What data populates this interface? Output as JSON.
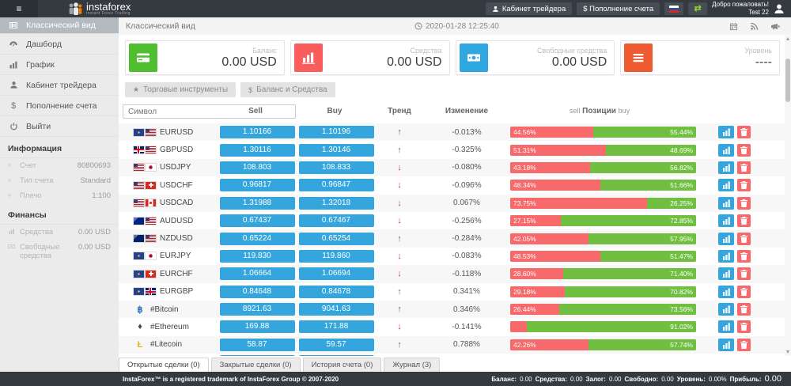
{
  "theme": {
    "header_bg": "#343a40",
    "accent_blue": "#35a6dd",
    "bar_red": "#f8696b",
    "bar_green": "#70bf41"
  },
  "header": {
    "logo_title": "instaforex",
    "logo_subtitle": "Instant Forex Trading",
    "trader_cabinet": "Кабинет трейдера",
    "deposit": "$ Пополнение счета",
    "welcome_line1": "Добро пожаловать!",
    "welcome_line2": "Test 22"
  },
  "subheader": {
    "breadcrumb": "Классический вид",
    "datetime": "2020-01-28 12:25:40"
  },
  "sidebar": {
    "items": [
      {
        "label": "Классический вид",
        "icon": "table-icon",
        "active": true
      },
      {
        "label": "Дашборд",
        "icon": "dashboard-icon",
        "active": false
      },
      {
        "label": "График",
        "icon": "chart-icon",
        "active": false
      },
      {
        "label": "Кабинет трейдера",
        "icon": "user-icon",
        "active": false
      },
      {
        "label": "Пополнение счета",
        "icon": "dollar-icon",
        "active": false
      },
      {
        "label": "Выйти",
        "icon": "power-icon",
        "active": false
      }
    ],
    "info_header": "Информация",
    "info": [
      {
        "label": "Счет",
        "value": "80800693"
      },
      {
        "label": "Тип счета",
        "value": "Standard"
      },
      {
        "label": "Плечо",
        "value": "1:100"
      }
    ],
    "finance_header": "Финансы",
    "finance": [
      {
        "label": "Средства",
        "value": "0.00 USD",
        "icon": "mini-chart-icon"
      },
      {
        "label": "Свободные средства",
        "value": "0.00 USD",
        "icon": "mini-banknote-icon"
      }
    ]
  },
  "cards": [
    {
      "label": "Баланс",
      "value": "0.00 USD",
      "icon": "credit-card-icon",
      "color": "#4fbf30"
    },
    {
      "label": "Средства",
      "value": "0.00 USD",
      "icon": "bar-chart-icon",
      "color": "#fb5d5d"
    },
    {
      "label": "Свободные средства",
      "value": "0.00 USD",
      "icon": "banknote-icon",
      "color": "#2fa7e1"
    },
    {
      "label": "Уровень",
      "value": "----",
      "icon": "list-icon",
      "color": "#f05a30"
    }
  ],
  "filters": [
    {
      "label": "Торговые инструменты",
      "icon": "★"
    },
    {
      "label": "Баланс и Средства",
      "icon": "$"
    }
  ],
  "table": {
    "symbol_placeholder": "Символ",
    "col_sell": "Sell",
    "col_buy": "Buy",
    "col_trend": "Тренд",
    "col_change": "Изменение",
    "col_positions_sell": "sell",
    "col_positions": "Позиции",
    "col_positions_buy": "buy",
    "rows": [
      {
        "symbol": "EURUSD",
        "flags": [
          "eu",
          "us"
        ],
        "crypto": "",
        "sell": "1.10166",
        "buy": "1.10196",
        "trend": "up",
        "change": "-0.013%",
        "sell_pct": 44.56,
        "buy_pct": 55.44,
        "sell_label": "44.56%",
        "buy_label": "55.44%"
      },
      {
        "symbol": "GBPUSD",
        "flags": [
          "gb",
          "us"
        ],
        "crypto": "",
        "sell": "1.30116",
        "buy": "1.30146",
        "trend": "up",
        "change": "-0.325%",
        "sell_pct": 51.31,
        "buy_pct": 48.69,
        "sell_label": "51.31%",
        "buy_label": "48.69%"
      },
      {
        "symbol": "USDJPY",
        "flags": [
          "us",
          "jp"
        ],
        "crypto": "",
        "sell": "108.803",
        "buy": "108.833",
        "trend": "down",
        "change": "-0.080%",
        "sell_pct": 43.18,
        "buy_pct": 56.82,
        "sell_label": "43.18%",
        "buy_label": "56.82%"
      },
      {
        "symbol": "USDCHF",
        "flags": [
          "us",
          "ch"
        ],
        "crypto": "",
        "sell": "0.96817",
        "buy": "0.96847",
        "trend": "down",
        "change": "-0.096%",
        "sell_pct": 48.34,
        "buy_pct": 51.66,
        "sell_label": "48.34%",
        "buy_label": "51.66%"
      },
      {
        "symbol": "USDCAD",
        "flags": [
          "us",
          "ca"
        ],
        "crypto": "",
        "sell": "1.31988",
        "buy": "1.32018",
        "trend": "down",
        "change": "0.067%",
        "sell_pct": 73.75,
        "buy_pct": 26.25,
        "sell_label": "73.75%",
        "buy_label": "26.25%"
      },
      {
        "symbol": "AUDUSD",
        "flags": [
          "au",
          "us"
        ],
        "crypto": "",
        "sell": "0.67437",
        "buy": "0.67467",
        "trend": "down",
        "change": "-0.256%",
        "sell_pct": 27.15,
        "buy_pct": 72.85,
        "sell_label": "27.15%",
        "buy_label": "72.85%"
      },
      {
        "symbol": "NZDUSD",
        "flags": [
          "nz",
          "us"
        ],
        "crypto": "",
        "sell": "0.65224",
        "buy": "0.65254",
        "trend": "up",
        "change": "-0.284%",
        "sell_pct": 42.05,
        "buy_pct": 57.95,
        "sell_label": "42.05%",
        "buy_label": "57.95%"
      },
      {
        "symbol": "EURJPY",
        "flags": [
          "eu",
          "jp"
        ],
        "crypto": "",
        "sell": "119.830",
        "buy": "119.860",
        "trend": "down",
        "change": "-0.083%",
        "sell_pct": 48.53,
        "buy_pct": 51.47,
        "sell_label": "48.53%",
        "buy_label": "51.47%"
      },
      {
        "symbol": "EURCHF",
        "flags": [
          "eu",
          "ch"
        ],
        "crypto": "",
        "sell": "1.06664",
        "buy": "1.06694",
        "trend": "down",
        "change": "-0.118%",
        "sell_pct": 28.6,
        "buy_pct": 71.4,
        "sell_label": "28.60%",
        "buy_label": "71.40%"
      },
      {
        "symbol": "EURGBP",
        "flags": [
          "eu",
          "gb"
        ],
        "crypto": "",
        "sell": "0.84648",
        "buy": "0.84678",
        "trend": "up",
        "change": "0.341%",
        "sell_pct": 29.18,
        "buy_pct": 70.82,
        "sell_label": "29.18%",
        "buy_label": "70.82%"
      },
      {
        "symbol": "#Bitcoin",
        "flags": [],
        "crypto": "bitcoin",
        "sell": "8921.63",
        "buy": "9041.63",
        "trend": "up",
        "change": "0.346%",
        "sell_pct": 26.44,
        "buy_pct": 73.56,
        "sell_label": "26.44%",
        "buy_label": "73.56%"
      },
      {
        "symbol": "#Ethereum",
        "flags": [],
        "crypto": "ethereum",
        "sell": "169.88",
        "buy": "171.88",
        "trend": "down",
        "change": "-0.141%",
        "sell_pct": 8.98,
        "buy_pct": 91.02,
        "sell_label": "",
        "buy_label": "91.02%"
      },
      {
        "symbol": "#Litecoin",
        "flags": [],
        "crypto": "litecoin",
        "sell": "58.87",
        "buy": "59.57",
        "trend": "up",
        "change": "0.788%",
        "sell_pct": 42.26,
        "buy_pct": 57.74,
        "sell_label": "42.26%",
        "buy_label": "57.74%"
      },
      {
        "symbol": "",
        "flags": [],
        "crypto": "",
        "sell": "",
        "buy": "",
        "trend": "",
        "change": "",
        "sell_pct": 2.5,
        "buy_pct": 97.5,
        "sell_label": "",
        "buy_label": "",
        "partial": true
      }
    ]
  },
  "crypto_icons": {
    "bitcoin": {
      "glyph": "฿",
      "color": "#2d71b8"
    },
    "ethereum": {
      "glyph": "♦",
      "color": "#454545"
    },
    "litecoin": {
      "glyph": "Ł",
      "color": "#e8b21a"
    }
  },
  "tabs": [
    {
      "label": "Открытые сделки (0)",
      "active": true
    },
    {
      "label": "Закрытые сделки (0)",
      "active": false
    },
    {
      "label": "История счета (0)",
      "active": false
    },
    {
      "label": "Журнал (3)",
      "active": false
    }
  ],
  "footer": {
    "trademark": "InstaForex™ is a registered trademark of InstaForex Group © 2007-2020",
    "summary": [
      {
        "label": "Баланс:",
        "value": "0.00",
        "large": false
      },
      {
        "label": "Средства:",
        "value": "0.00",
        "large": false
      },
      {
        "label": "Залог:",
        "value": "0.00",
        "large": false
      },
      {
        "label": "Свободно:",
        "value": "0.00",
        "large": false
      },
      {
        "label": "Уровень:",
        "value": "0.00%",
        "large": false
      },
      {
        "label": "Прибыль:",
        "value": "0.00",
        "large": true
      }
    ]
  }
}
